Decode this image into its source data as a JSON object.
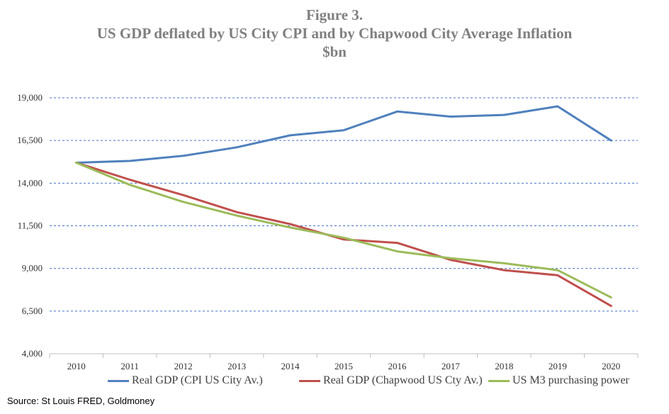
{
  "title": {
    "line1": "Figure 3.",
    "line2": "US GDP deflated by US City CPI and by Chapwood City Average Inflation",
    "line3": "$bn"
  },
  "chart_data": {
    "type": "line",
    "title": "US GDP deflated by US City CPI and by Chapwood City Average Inflation",
    "xlabel": "",
    "ylabel": "$bn",
    "categories": [
      "2010",
      "2011",
      "2012",
      "2013",
      "2014",
      "2015",
      "2016",
      "2017",
      "2018",
      "2019",
      "2020"
    ],
    "yticks": [
      4000,
      6500,
      9000,
      11500,
      14000,
      16500,
      19000
    ],
    "ytick_labels": [
      "4,000",
      "6,500",
      "9,000",
      "11,500",
      "14,000",
      "16,500",
      "19,000"
    ],
    "ylim": [
      4000,
      19000
    ],
    "grid": "horizontal dashed",
    "legend": "bottom",
    "series": [
      {
        "name": "Real GDP (CPI US City Av.)",
        "color": "#4f81bd",
        "values": [
          15200,
          15300,
          15600,
          16100,
          16800,
          17100,
          18200,
          17900,
          18000,
          18500,
          16500
        ]
      },
      {
        "name": "Real GDP (Chapwood US Cty Av.)",
        "color": "#c0504d",
        "values": [
          15200,
          14200,
          13300,
          12300,
          11600,
          10700,
          10500,
          9500,
          8900,
          8600,
          6800
        ]
      },
      {
        "name": "US M3 purchasing power",
        "color": "#9bbb59",
        "values": [
          15200,
          13900,
          12900,
          12100,
          11400,
          10800,
          10000,
          9600,
          9300,
          8900,
          7300
        ]
      }
    ]
  },
  "source": "Source: St Louis FRED, Goldmoney"
}
